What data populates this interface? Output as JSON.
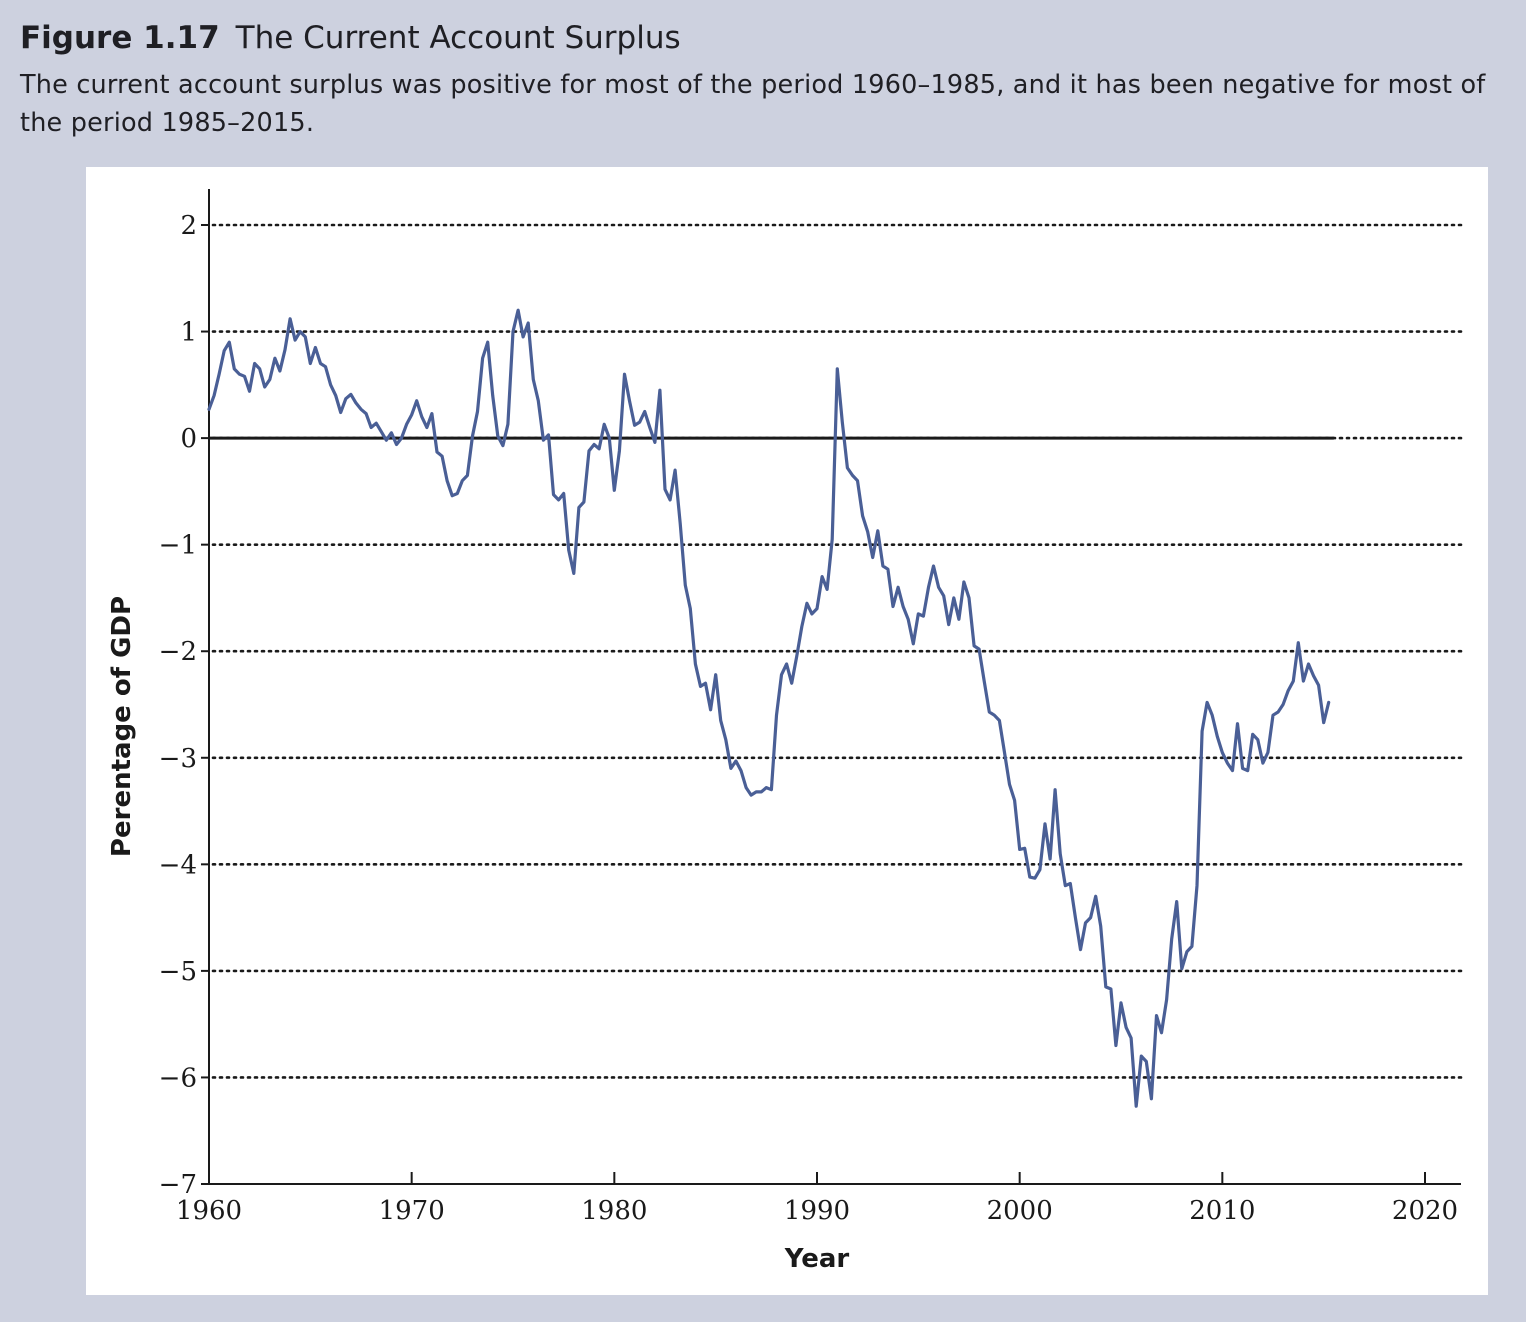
{
  "figure": {
    "number": "Figure 1.17",
    "title": "The Current Account Surplus",
    "caption": "The current account surplus was positive for most of the period 1960–1985, and it has been negative for most of the period 1985–2015."
  },
  "colors": {
    "series": "#4a5f96",
    "axis": "#1a1a1a",
    "panel": "#ffffff",
    "background": "#cdd1df"
  },
  "chart_data": {
    "type": "line",
    "title": "",
    "xlabel": "Year",
    "ylabel": "Perentage of GDP",
    "xlim": [
      1960,
      2022
    ],
    "ylim": [
      -7,
      2.3
    ],
    "x_ticks": [
      1960,
      1970,
      1980,
      1990,
      2000,
      2010,
      2020
    ],
    "y_ticks": [
      2,
      1,
      0,
      -1,
      -2,
      -3,
      -4,
      -5,
      -6,
      -7
    ],
    "y_tick_labels": [
      "2",
      "1",
      "0",
      "−1",
      "−2",
      "−3",
      "−4",
      "−5",
      "−6",
      "−7"
    ],
    "grid": "horizontal dotted",
    "zero_line_end": 2015.5,
    "series": [
      {
        "name": "",
        "points": [
          [
            1960.0,
            0.27
          ],
          [
            1960.25,
            0.4
          ],
          [
            1960.5,
            0.6
          ],
          [
            1960.75,
            0.82
          ],
          [
            1961.0,
            0.9
          ],
          [
            1961.25,
            0.65
          ],
          [
            1961.5,
            0.6
          ],
          [
            1961.75,
            0.58
          ],
          [
            1962.0,
            0.44
          ],
          [
            1962.25,
            0.7
          ],
          [
            1962.5,
            0.65
          ],
          [
            1962.75,
            0.48
          ],
          [
            1963.0,
            0.55
          ],
          [
            1963.25,
            0.75
          ],
          [
            1963.5,
            0.63
          ],
          [
            1963.75,
            0.83
          ],
          [
            1964.0,
            1.12
          ],
          [
            1964.25,
            0.92
          ],
          [
            1964.5,
            1.0
          ],
          [
            1964.75,
            0.95
          ],
          [
            1965.0,
            0.7
          ],
          [
            1965.25,
            0.85
          ],
          [
            1965.5,
            0.7
          ],
          [
            1965.75,
            0.67
          ],
          [
            1966.0,
            0.5
          ],
          [
            1966.25,
            0.4
          ],
          [
            1966.5,
            0.24
          ],
          [
            1966.75,
            0.37
          ],
          [
            1967.0,
            0.41
          ],
          [
            1967.25,
            0.33
          ],
          [
            1967.5,
            0.27
          ],
          [
            1967.75,
            0.23
          ],
          [
            1968.0,
            0.1
          ],
          [
            1968.25,
            0.14
          ],
          [
            1968.5,
            0.06
          ],
          [
            1968.75,
            -0.02
          ],
          [
            1969.0,
            0.05
          ],
          [
            1969.25,
            -0.06
          ],
          [
            1969.5,
            0.0
          ],
          [
            1969.75,
            0.13
          ],
          [
            1970.0,
            0.22
          ],
          [
            1970.25,
            0.35
          ],
          [
            1970.5,
            0.2
          ],
          [
            1970.75,
            0.1
          ],
          [
            1971.0,
            0.23
          ],
          [
            1971.25,
            -0.13
          ],
          [
            1971.5,
            -0.17
          ],
          [
            1971.75,
            -0.4
          ],
          [
            1972.0,
            -0.54
          ],
          [
            1972.25,
            -0.52
          ],
          [
            1972.5,
            -0.4
          ],
          [
            1972.75,
            -0.35
          ],
          [
            1973.0,
            0.02
          ],
          [
            1973.25,
            0.25
          ],
          [
            1973.5,
            0.75
          ],
          [
            1973.75,
            0.9
          ],
          [
            1974.0,
            0.4
          ],
          [
            1974.25,
            0.02
          ],
          [
            1974.5,
            -0.07
          ],
          [
            1974.75,
            0.13
          ],
          [
            1975.0,
            1.0
          ],
          [
            1975.25,
            1.2
          ],
          [
            1975.5,
            0.95
          ],
          [
            1975.75,
            1.08
          ],
          [
            1976.0,
            0.55
          ],
          [
            1976.25,
            0.35
          ],
          [
            1976.5,
            -0.02
          ],
          [
            1976.75,
            0.03
          ],
          [
            1977.0,
            -0.53
          ],
          [
            1977.25,
            -0.58
          ],
          [
            1977.5,
            -0.52
          ],
          [
            1977.75,
            -1.05
          ],
          [
            1978.0,
            -1.27
          ],
          [
            1978.25,
            -0.65
          ],
          [
            1978.5,
            -0.6
          ],
          [
            1978.75,
            -0.12
          ],
          [
            1979.0,
            -0.06
          ],
          [
            1979.25,
            -0.1
          ],
          [
            1979.5,
            0.13
          ],
          [
            1979.75,
            0.0
          ],
          [
            1980.0,
            -0.49
          ],
          [
            1980.25,
            -0.12
          ],
          [
            1980.5,
            0.6
          ],
          [
            1980.75,
            0.35
          ],
          [
            1981.0,
            0.12
          ],
          [
            1981.25,
            0.15
          ],
          [
            1981.5,
            0.25
          ],
          [
            1981.75,
            0.1
          ],
          [
            1982.0,
            -0.04
          ],
          [
            1982.25,
            0.45
          ],
          [
            1982.5,
            -0.48
          ],
          [
            1982.75,
            -0.58
          ],
          [
            1983.0,
            -0.3
          ],
          [
            1983.25,
            -0.8
          ],
          [
            1983.5,
            -1.38
          ],
          [
            1983.75,
            -1.6
          ],
          [
            1984.0,
            -2.12
          ],
          [
            1984.25,
            -2.33
          ],
          [
            1984.5,
            -2.3
          ],
          [
            1984.75,
            -2.55
          ],
          [
            1985.0,
            -2.22
          ],
          [
            1985.25,
            -2.65
          ],
          [
            1985.5,
            -2.83
          ],
          [
            1985.75,
            -3.1
          ],
          [
            1986.0,
            -3.03
          ],
          [
            1986.25,
            -3.12
          ],
          [
            1986.5,
            -3.28
          ],
          [
            1986.75,
            -3.35
          ],
          [
            1987.0,
            -3.32
          ],
          [
            1987.25,
            -3.32
          ],
          [
            1987.5,
            -3.28
          ],
          [
            1987.75,
            -3.3
          ],
          [
            1988.0,
            -2.6
          ],
          [
            1988.25,
            -2.22
          ],
          [
            1988.5,
            -2.12
          ],
          [
            1988.75,
            -2.3
          ],
          [
            1989.0,
            -2.05
          ],
          [
            1989.25,
            -1.77
          ],
          [
            1989.5,
            -1.55
          ],
          [
            1989.75,
            -1.65
          ],
          [
            1990.0,
            -1.6
          ],
          [
            1990.25,
            -1.3
          ],
          [
            1990.5,
            -1.42
          ],
          [
            1990.75,
            -0.95
          ],
          [
            1991.0,
            0.65
          ],
          [
            1991.25,
            0.15
          ],
          [
            1991.5,
            -0.28
          ],
          [
            1991.75,
            -0.35
          ],
          [
            1992.0,
            -0.4
          ],
          [
            1992.25,
            -0.73
          ],
          [
            1992.5,
            -0.88
          ],
          [
            1992.75,
            -1.12
          ],
          [
            1993.0,
            -0.87
          ],
          [
            1993.25,
            -1.2
          ],
          [
            1993.5,
            -1.23
          ],
          [
            1993.75,
            -1.58
          ],
          [
            1994.0,
            -1.4
          ],
          [
            1994.25,
            -1.58
          ],
          [
            1994.5,
            -1.7
          ],
          [
            1994.75,
            -1.93
          ],
          [
            1995.0,
            -1.65
          ],
          [
            1995.25,
            -1.67
          ],
          [
            1995.5,
            -1.4
          ],
          [
            1995.75,
            -1.2
          ],
          [
            1996.0,
            -1.4
          ],
          [
            1996.25,
            -1.48
          ],
          [
            1996.5,
            -1.75
          ],
          [
            1996.75,
            -1.5
          ],
          [
            1997.0,
            -1.7
          ],
          [
            1997.25,
            -1.35
          ],
          [
            1997.5,
            -1.5
          ],
          [
            1997.75,
            -1.95
          ],
          [
            1998.0,
            -1.98
          ],
          [
            1998.25,
            -2.28
          ],
          [
            1998.5,
            -2.57
          ],
          [
            1998.75,
            -2.6
          ],
          [
            1999.0,
            -2.65
          ],
          [
            1999.25,
            -2.95
          ],
          [
            1999.5,
            -3.25
          ],
          [
            1999.75,
            -3.4
          ],
          [
            2000.0,
            -3.86
          ],
          [
            2000.25,
            -3.85
          ],
          [
            2000.5,
            -4.12
          ],
          [
            2000.75,
            -4.13
          ],
          [
            2001.0,
            -4.05
          ],
          [
            2001.25,
            -3.62
          ],
          [
            2001.5,
            -3.95
          ],
          [
            2001.75,
            -3.3
          ],
          [
            2002.0,
            -3.9
          ],
          [
            2002.25,
            -4.2
          ],
          [
            2002.5,
            -4.18
          ],
          [
            2002.75,
            -4.5
          ],
          [
            2003.0,
            -4.8
          ],
          [
            2003.25,
            -4.55
          ],
          [
            2003.5,
            -4.5
          ],
          [
            2003.75,
            -4.3
          ],
          [
            2004.0,
            -4.58
          ],
          [
            2004.25,
            -5.15
          ],
          [
            2004.5,
            -5.17
          ],
          [
            2004.75,
            -5.7
          ],
          [
            2005.0,
            -5.3
          ],
          [
            2005.25,
            -5.53
          ],
          [
            2005.5,
            -5.63
          ],
          [
            2005.75,
            -6.27
          ],
          [
            2006.0,
            -5.8
          ],
          [
            2006.25,
            -5.85
          ],
          [
            2006.5,
            -6.2
          ],
          [
            2006.75,
            -5.42
          ],
          [
            2007.0,
            -5.58
          ],
          [
            2007.25,
            -5.27
          ],
          [
            2007.5,
            -4.7
          ],
          [
            2007.75,
            -4.35
          ],
          [
            2008.0,
            -4.98
          ],
          [
            2008.25,
            -4.82
          ],
          [
            2008.5,
            -4.77
          ],
          [
            2008.75,
            -4.2
          ],
          [
            2009.0,
            -2.75
          ],
          [
            2009.25,
            -2.48
          ],
          [
            2009.5,
            -2.6
          ],
          [
            2009.75,
            -2.8
          ],
          [
            2010.0,
            -2.95
          ],
          [
            2010.25,
            -3.05
          ],
          [
            2010.5,
            -3.12
          ],
          [
            2010.75,
            -2.68
          ],
          [
            2011.0,
            -3.1
          ],
          [
            2011.25,
            -3.12
          ],
          [
            2011.5,
            -2.78
          ],
          [
            2011.75,
            -2.83
          ],
          [
            2012.0,
            -3.05
          ],
          [
            2012.25,
            -2.95
          ],
          [
            2012.5,
            -2.6
          ],
          [
            2012.75,
            -2.57
          ],
          [
            2013.0,
            -2.5
          ],
          [
            2013.25,
            -2.37
          ],
          [
            2013.5,
            -2.28
          ],
          [
            2013.75,
            -1.92
          ],
          [
            2014.0,
            -2.28
          ],
          [
            2014.25,
            -2.12
          ],
          [
            2014.5,
            -2.23
          ],
          [
            2014.75,
            -2.32
          ],
          [
            2015.0,
            -2.67
          ],
          [
            2015.25,
            -2.48
          ]
        ]
      }
    ]
  }
}
